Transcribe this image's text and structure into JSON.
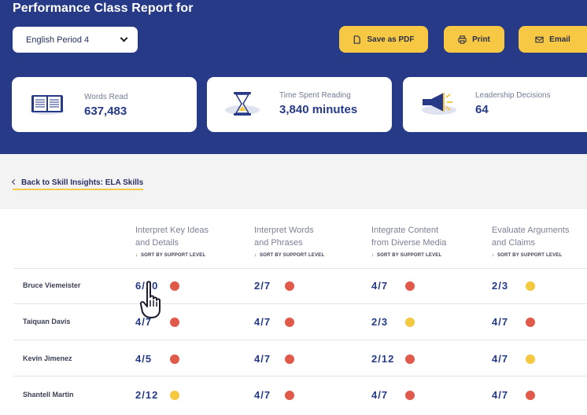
{
  "header": {
    "title": "Performance Class Report for",
    "class_select": "English Period 4",
    "save_pdf": "Save as PDF",
    "print": "Print",
    "email": "Email"
  },
  "stats": [
    {
      "label": "Words Read",
      "value": "637,483",
      "icon": "book-icon"
    },
    {
      "label": "Time Spent Reading",
      "value": "3,840 minutes",
      "icon": "hourglass-icon"
    },
    {
      "label": "Leadership Decisions",
      "value": "64",
      "icon": "megaphone-icon"
    }
  ],
  "back_link": "Back to Skill Insights: ELA Skills",
  "columns": [
    {
      "line1": "Interpret Key Ideas",
      "line2": "and Details",
      "sort": "SORT BY SUPPORT LEVEL"
    },
    {
      "line1": "Interpret Words",
      "line2": "and Phrases",
      "sort": "SORT BY SUPPORT LEVEL"
    },
    {
      "line1": "Integrate Content",
      "line2": "from Diverse Media",
      "sort": "SORT BY SUPPORT LEVEL"
    },
    {
      "line1": "Evaluate Arguments",
      "line2": "and Claims",
      "sort": "SORT BY SUPPORT LEVEL"
    }
  ],
  "rows": [
    {
      "name": "Bruce Viemeister",
      "scores": [
        "6/10",
        "2/7",
        "4/7",
        "2/3"
      ],
      "levels": [
        "red",
        "red",
        "red",
        "yellow"
      ]
    },
    {
      "name": "Taiquan Davis",
      "scores": [
        "4/7",
        "4/7",
        "2/3",
        "4/7"
      ],
      "levels": [
        "red",
        "red",
        "yellow",
        "red"
      ]
    },
    {
      "name": "Kevin Jimenez",
      "scores": [
        "4/5",
        "4/7",
        "2/12",
        "4/7"
      ],
      "levels": [
        "red",
        "red",
        "red",
        "yellow"
      ]
    },
    {
      "name": "Shantell Martin",
      "scores": [
        "2/12",
        "4/7",
        "4/7",
        "4/7"
      ],
      "levels": [
        "yellow",
        "red",
        "red",
        "red"
      ]
    }
  ],
  "colors": {
    "header": "#263a87",
    "accent": "#f6c844",
    "red": "#e05a4c",
    "yellow": "#f5c842"
  }
}
